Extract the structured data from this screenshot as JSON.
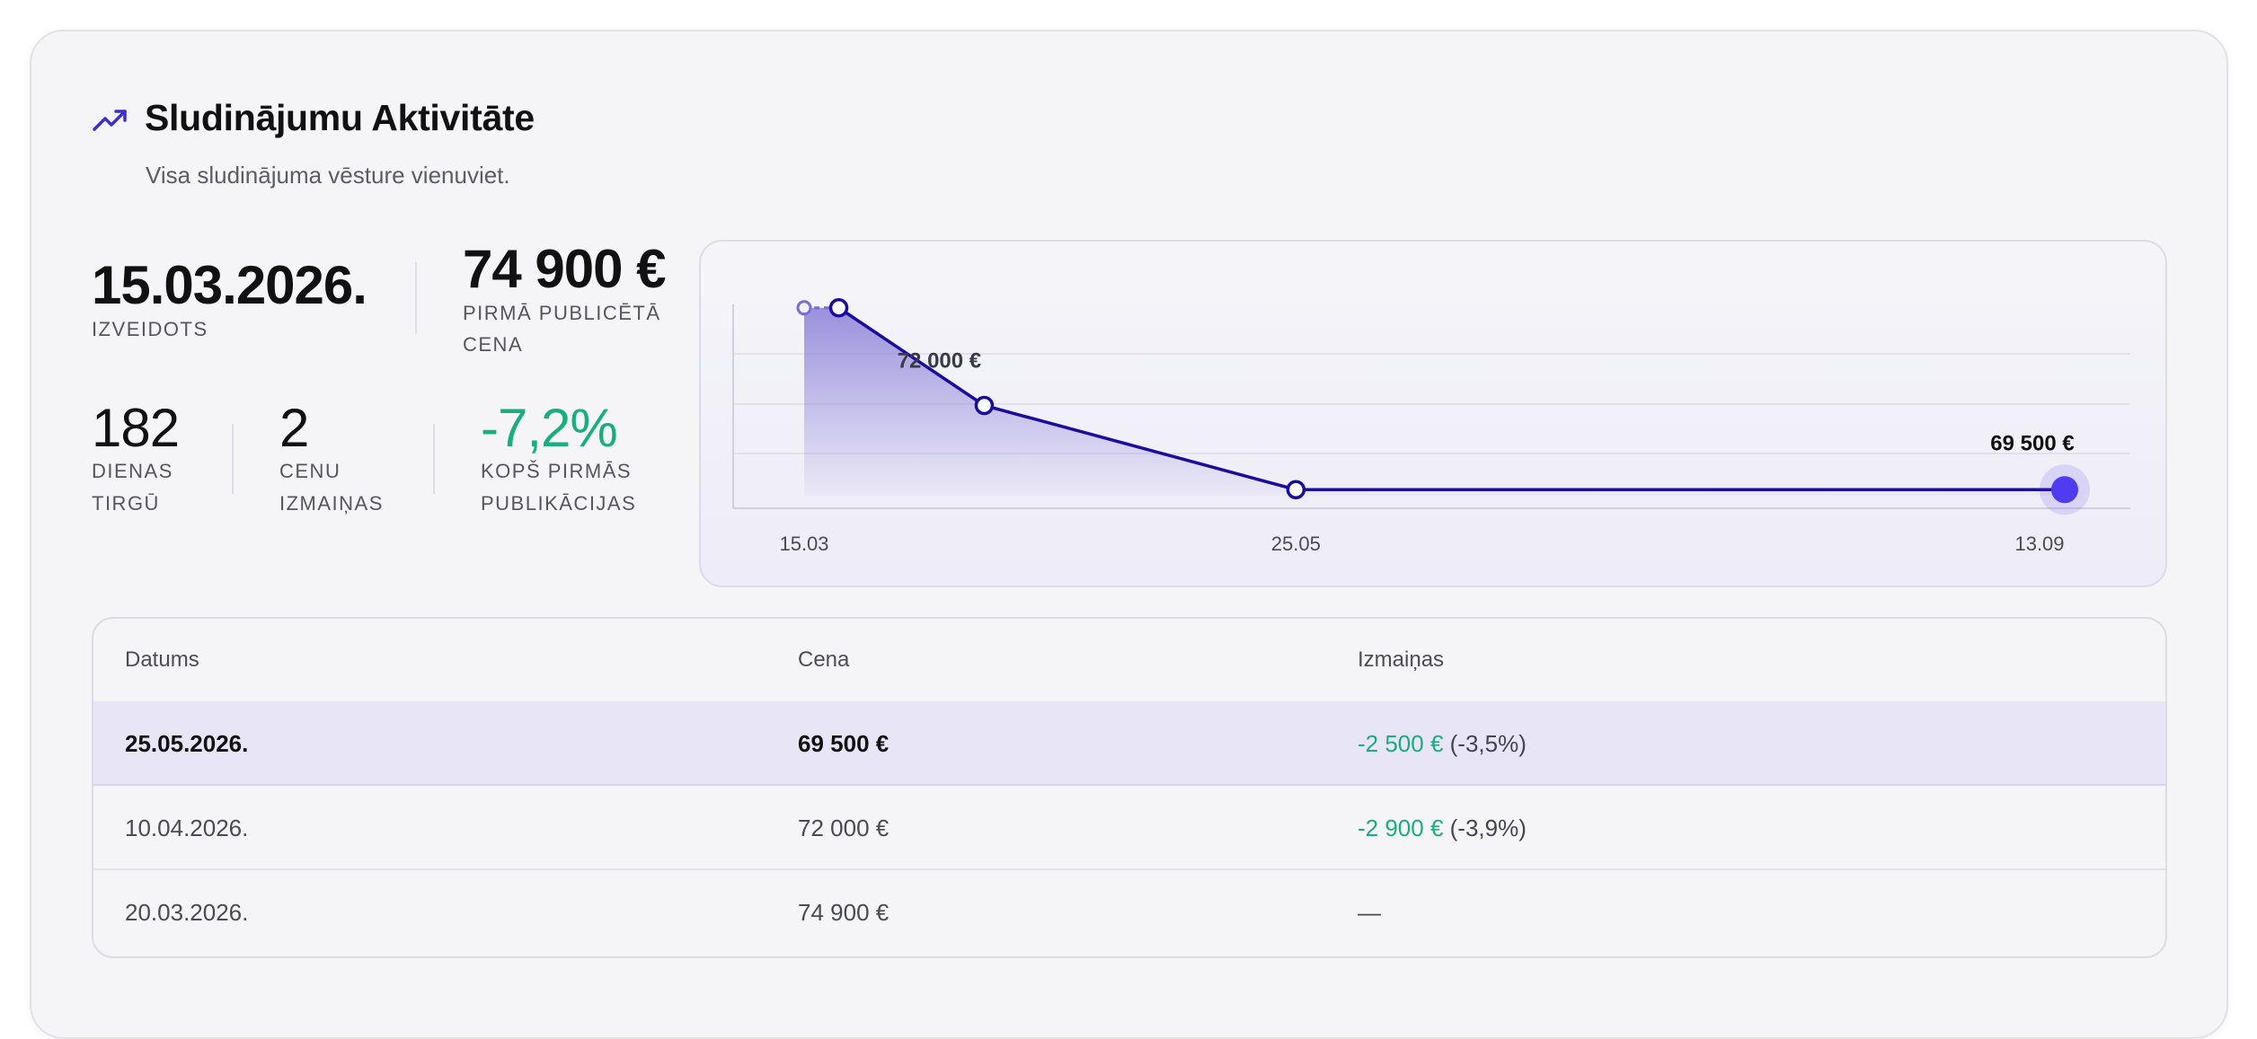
{
  "header": {
    "title": "Sludinājumu Aktivitāte",
    "subtitle": "Visa sludinājuma vēsture vienuviet."
  },
  "stats": {
    "created_date": "15.03.2026.",
    "created_label": "IZVEIDOTS",
    "first_price": "74 900 €",
    "first_price_label_line1": "PIRMĀ PUBLICĒTĀ",
    "first_price_label_line2": "CENA",
    "days": "182",
    "days_label_line1": "DIENAS",
    "days_label_line2": "TIRGŪ",
    "price_changes": "2",
    "price_changes_label_line1": "CENU",
    "price_changes_label_line2": "IZMAIŅAS",
    "change_pct": "-7,2%",
    "change_pct_label_line1": "KOPŠ PIRMĀS",
    "change_pct_label_line2": "PUBLIKĀCIJAS"
  },
  "chart_data": {
    "type": "line",
    "x_tick_labels": [
      "15.03",
      "25.05",
      "13.09"
    ],
    "points": [
      {
        "x": "15.03",
        "y": 74900
      },
      {
        "x": "20.03",
        "y": 74900
      },
      {
        "x": "10.04",
        "y": 72000
      },
      {
        "x": "25.05",
        "y": 69500
      },
      {
        "x": "13.09",
        "y": 69500
      }
    ],
    "data_labels": [
      "72 000 €",
      "69 500 €"
    ],
    "grid": true,
    "colors": {
      "line": "#1a0d9e",
      "area": "#8b7fd8",
      "current_point": "#4f3cf0"
    }
  },
  "table": {
    "headers": [
      "Datums",
      "Cena",
      "Izmaiņas"
    ],
    "rows": [
      {
        "date": "25.05.2026.",
        "price": "69 500 €",
        "change": "-2 500 €",
        "change_pct": "(-3,5%)"
      },
      {
        "date": "10.04.2026.",
        "price": "72 000 €",
        "change": "-2 900 €",
        "change_pct": "(-3,9%)"
      },
      {
        "date": "20.03.2026.",
        "price": "74 900 €",
        "change": "—",
        "change_pct": ""
      }
    ]
  },
  "colors": {
    "accent": "#3b2fc9",
    "positive": "#1aae7e",
    "highlight_row": "#e8e5f7"
  }
}
